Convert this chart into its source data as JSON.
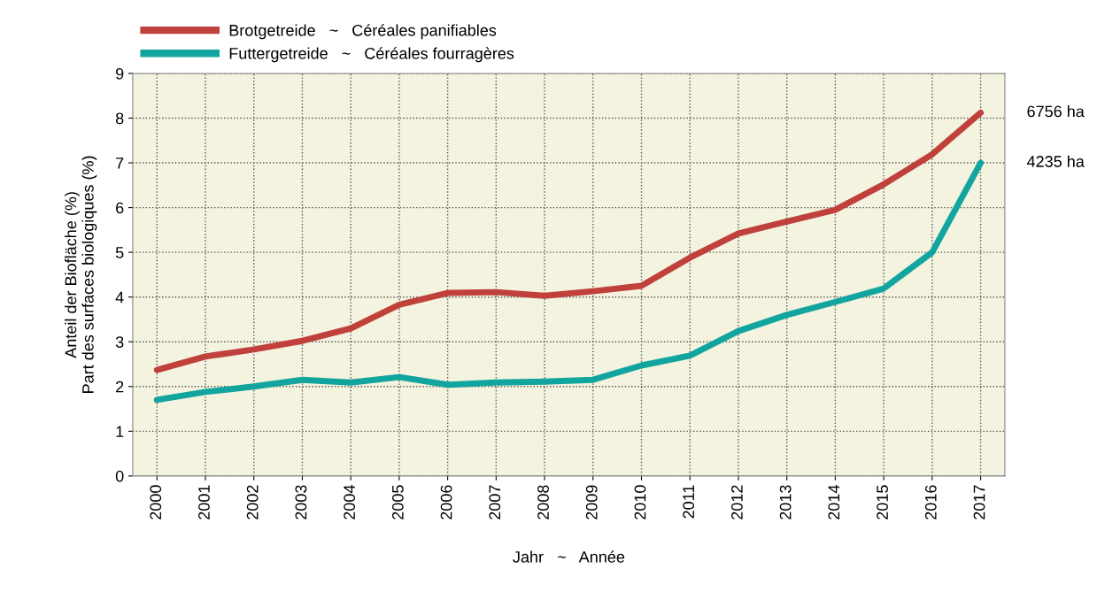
{
  "chart_data": {
    "type": "line",
    "xlabel": "Jahr   ~   Année",
    "ylabel": "Anteil der Biofläche (%)\nPart des surfaces biologiques (%)",
    "categories": [
      "2000",
      "2001",
      "2002",
      "2003",
      "2004",
      "2005",
      "2006",
      "2007",
      "2008",
      "2009",
      "2010",
      "2011",
      "2012",
      "2013",
      "2014",
      "2015",
      "2016",
      "2017"
    ],
    "series": [
      {
        "name": "Brotgetreide   ~   Céréales panifiables",
        "color": "#c0403c",
        "values": [
          2.37,
          2.67,
          2.83,
          3.02,
          3.3,
          3.83,
          4.09,
          4.11,
          4.03,
          4.13,
          4.25,
          4.88,
          5.42,
          5.69,
          5.95,
          6.52,
          7.19,
          8.12
        ]
      },
      {
        "name": "Futtergetreide   ~   Céréales fourragères",
        "color": "#12a59f",
        "values": [
          1.7,
          1.88,
          2.0,
          2.15,
          2.09,
          2.21,
          2.04,
          2.09,
          2.11,
          2.15,
          2.47,
          2.69,
          3.24,
          3.6,
          3.89,
          4.19,
          5.0,
          7.0
        ]
      }
    ],
    "annotations": [
      "6756 ha",
      "4235 ha"
    ],
    "ylim": [
      0,
      9
    ],
    "yticks": [
      0,
      1,
      2,
      3,
      4,
      5,
      6,
      7,
      8,
      9
    ],
    "grid": true,
    "legend": "top left",
    "marker": "none",
    "line_style": "solid"
  }
}
